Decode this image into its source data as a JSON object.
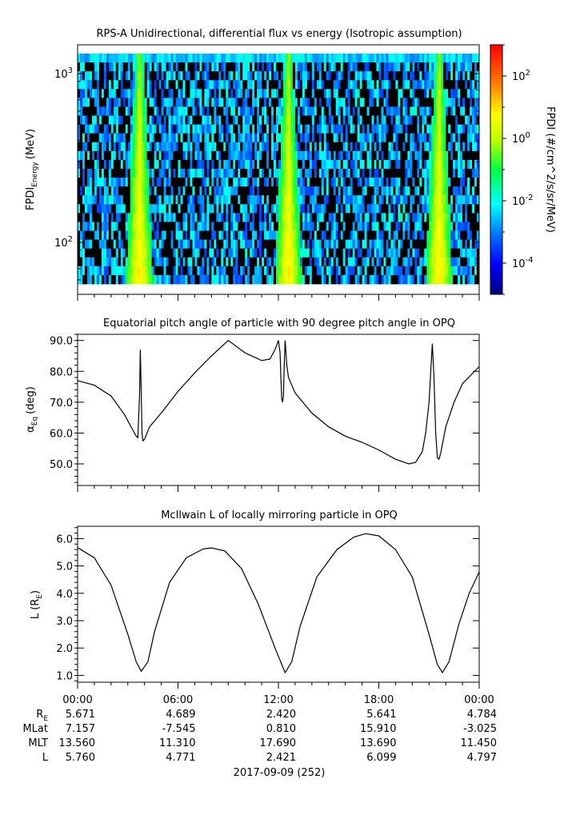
{
  "panel1": {
    "title": "RPS-A Unidirectional, differential flux vs energy (Isotropic assumption)",
    "ylabel_main": "FPDI",
    "ylabel_sub": "Energy",
    "ylabel_unit": "(MeV)",
    "colorbar_label": "FPDI (#/cm^2/s/sr/MeV)"
  },
  "panel2": {
    "title": "Equatorial pitch angle of particle with 90 degree pitch angle in OPQ",
    "ylabel_main": "α",
    "ylabel_sub": "Eq",
    "ylabel_unit": "(deg)"
  },
  "panel3": {
    "title": "McIlwain L of locally mirroring particle in OPQ",
    "ylabel_main": "L (R",
    "ylabel_sub": "E",
    "ylabel_close": ")"
  },
  "ephemeris": {
    "rows": [
      {
        "label": "R",
        "label_sub": "E",
        "values": [
          "5.671",
          "4.689",
          "2.420",
          "5.641",
          "4.784"
        ]
      },
      {
        "label": "MLat",
        "label_sub": "",
        "values": [
          "7.157",
          "-7.545",
          "0.810",
          "15.910",
          "-3.025"
        ]
      },
      {
        "label": "MLT",
        "label_sub": "",
        "values": [
          "13.560",
          "11.310",
          "17.690",
          "13.690",
          "11.450"
        ]
      },
      {
        "label": "L",
        "label_sub": "",
        "values": [
          "5.760",
          "4.771",
          "2.421",
          "6.099",
          "4.797"
        ]
      }
    ],
    "date": "2017-09-09 (252)"
  },
  "chart_data": [
    {
      "type": "heatmap",
      "title": "RPS-A Unidirectional, differential flux vs energy (Isotropic assumption)",
      "xlabel": "",
      "ylabel": "FPDI_Energy (MeV)",
      "xlim": [
        0,
        24
      ],
      "ylim": [
        55,
        1400
      ],
      "y_scale": "log",
      "ytick_labels": [
        "10^2",
        "10^3"
      ],
      "colorbar": {
        "label": "FPDI (#/cm^2/s/sr/MeV)",
        "scale": "log",
        "range": [
          1e-05,
          1000
        ],
        "tick_labels": [
          "10^-4",
          "10^-2",
          "10^0",
          "10^2"
        ]
      },
      "enhancement_bands_hours": [
        3.7,
        12.6,
        21.6
      ]
    },
    {
      "type": "line",
      "title": "Equatorial pitch angle of particle with 90 degree pitch angle in OPQ",
      "ylabel": "α_Eq (deg)",
      "xlim": [
        0,
        24
      ],
      "ylim": [
        43,
        92
      ],
      "yticks": [
        50,
        60,
        70,
        80,
        90
      ],
      "x": [
        0,
        1,
        2,
        2.8,
        3.3,
        3.5,
        3.6,
        3.7,
        3.75,
        3.8,
        3.85,
        3.9,
        4.0,
        4.3,
        5,
        6,
        7,
        8,
        9,
        10,
        11,
        11.5,
        11.8,
        12.0,
        12.1,
        12.15,
        12.2,
        12.25,
        12.3,
        12.35,
        12.4,
        12.5,
        12.6,
        13.0,
        14,
        15,
        16,
        17,
        18,
        19,
        19.8,
        20.2,
        20.6,
        20.8,
        21.0,
        21.2,
        21.3,
        21.4,
        21.5,
        21.6,
        21.7,
        22.0,
        22.5,
        23,
        24
      ],
      "series": [
        {
          "y": [
            77,
            75.5,
            72,
            66,
            61,
            59,
            58.5,
            72,
            87,
            74,
            60,
            57.5,
            58,
            62,
            66.5,
            73.5,
            79.5,
            85,
            90,
            86,
            83.5,
            84,
            87,
            90,
            86,
            78,
            71,
            70,
            72,
            82,
            90,
            82,
            78,
            73,
            66.5,
            62,
            59,
            57,
            54.5,
            51.5,
            50,
            50.5,
            54,
            60,
            70,
            89,
            78,
            60,
            52,
            51.5,
            53.5,
            62,
            70,
            76,
            81.5
          ]
        }
      ]
    },
    {
      "type": "line",
      "title": "McIlwain L of locally mirroring particle in OPQ",
      "ylabel": "L (R_E)",
      "xlim": [
        0,
        24
      ],
      "ylim": [
        0.75,
        6.45
      ],
      "yticks": [
        1,
        2,
        3,
        4,
        5,
        6
      ],
      "x": [
        0,
        1,
        2,
        3,
        3.5,
        3.8,
        4.2,
        4.6,
        5.5,
        6.5,
        7.5,
        8.0,
        8.8,
        9.8,
        10.8,
        11.8,
        12.4,
        12.8,
        13.3,
        14.3,
        15.5,
        16.5,
        17.2,
        18.0,
        19.0,
        20.0,
        21.0,
        21.5,
        21.8,
        22.2,
        22.8,
        23.4,
        24
      ],
      "series": [
        {
          "y": [
            5.67,
            5.3,
            4.3,
            2.5,
            1.5,
            1.15,
            1.5,
            2.6,
            4.4,
            5.3,
            5.62,
            5.66,
            5.55,
            4.9,
            3.6,
            2.0,
            1.1,
            1.5,
            2.8,
            4.6,
            5.6,
            6.05,
            6.18,
            6.1,
            5.6,
            4.6,
            2.5,
            1.4,
            1.1,
            1.5,
            2.9,
            4.0,
            4.78
          ]
        }
      ]
    }
  ],
  "x_axis": {
    "ticks": [
      "00:00",
      "06:00",
      "12:00",
      "18:00",
      "00:00"
    ]
  }
}
